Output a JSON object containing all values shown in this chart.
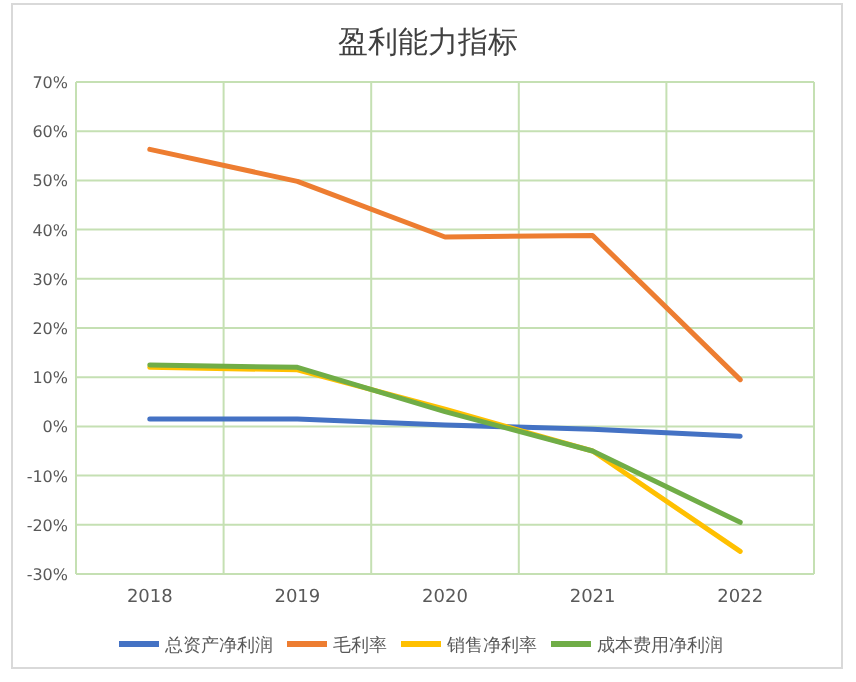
{
  "chart_data": {
    "type": "line",
    "title": "盈利能力指标",
    "categories": [
      "2018",
      "2019",
      "2020",
      "2021",
      "2022"
    ],
    "series": [
      {
        "name": "总资产净利润",
        "color": "#4472c4",
        "values": [
          1.5,
          1.5,
          0.3,
          -0.6,
          -2
        ]
      },
      {
        "name": "毛利率",
        "color": "#ed7d31",
        "values": [
          56.3,
          49.8,
          38.5,
          38.8,
          9.5
        ]
      },
      {
        "name": "销售净利率",
        "color": "#ffc000",
        "values": [
          12,
          11.5,
          3.5,
          -5,
          -25.4
        ]
      },
      {
        "name": "成本费用净利润",
        "color": "#70ad47",
        "values": [
          12.5,
          12,
          3,
          -5,
          -19.5
        ]
      }
    ],
    "ylim": [
      -30,
      70
    ],
    "yticks": [
      {
        "value": -30,
        "label": "-30%"
      },
      {
        "value": -20,
        "label": "-20%"
      },
      {
        "value": -10,
        "label": "-10%"
      },
      {
        "value": 0,
        "label": "0%"
      },
      {
        "value": 10,
        "label": "10%"
      },
      {
        "value": 20,
        "label": "20%"
      },
      {
        "value": 30,
        "label": "30%"
      },
      {
        "value": 40,
        "label": "40%"
      },
      {
        "value": 50,
        "label": "50%"
      },
      {
        "value": 60,
        "label": "60%"
      },
      {
        "value": 70,
        "label": "70%"
      }
    ],
    "grid": true,
    "legend": "bottom",
    "marker": "none",
    "line_style": "solid"
  }
}
